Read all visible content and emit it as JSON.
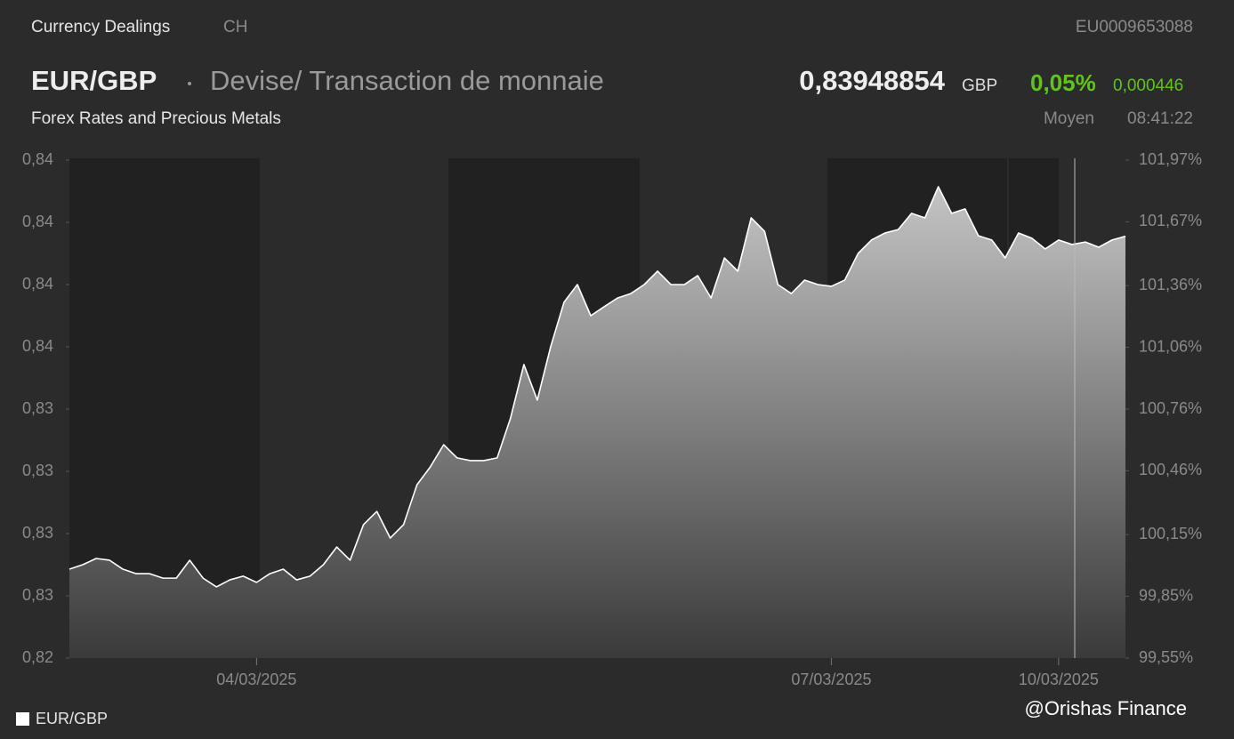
{
  "header": {
    "source": "Currency Dealings",
    "market": "CH",
    "isin": "EU0009653088",
    "symbol": "EUR/GBP",
    "description": "Devise/ Transaction de monnaie",
    "category": "Forex Rates and Precious Metals",
    "price": "0,83948854",
    "currency": "GBP",
    "change_pct": "0,05%",
    "change_abs": "0,000446",
    "price_type": "Moyen",
    "time": "08:41:22",
    "watermark": "@Orishas Finance"
  },
  "chart_data": {
    "type": "area",
    "categories": [
      null,
      null,
      null,
      null,
      null,
      null,
      null,
      null,
      null,
      null,
      null,
      null,
      null,
      null,
      "04/03/2025",
      null,
      null,
      null,
      null,
      null,
      null,
      null,
      null,
      null,
      null,
      null,
      null,
      null,
      null,
      null,
      null,
      null,
      null,
      null,
      null,
      null,
      null,
      null,
      null,
      null,
      null,
      null,
      null,
      null,
      null,
      null,
      null,
      null,
      null,
      null,
      null,
      null,
      null,
      null,
      null,
      null,
      null,
      "07/03/2025",
      null,
      null,
      null,
      null,
      null,
      null,
      null,
      null,
      null,
      null,
      null,
      null,
      null,
      null,
      null,
      null,
      "10/03/2025",
      null,
      null,
      null,
      null,
      null
    ],
    "series": [
      {
        "name": "EUR/GBP",
        "color": "#ffffff",
        "values": [
          0.82612,
          0.8263,
          0.82655,
          0.82648,
          0.82612,
          0.82594,
          0.82594,
          0.82576,
          0.82576,
          0.82648,
          0.82576,
          0.82541,
          0.82569,
          0.82584,
          0.82559,
          0.82594,
          0.82612,
          0.82569,
          0.82584,
          0.8263,
          0.82701,
          0.82648,
          0.82791,
          0.82844,
          0.82737,
          0.82791,
          0.82951,
          0.83023,
          0.83112,
          0.83059,
          0.83048,
          0.83048,
          0.83059,
          0.83219,
          0.83434,
          0.83291,
          0.83505,
          0.83684,
          0.83755,
          0.8363,
          0.83666,
          0.83701,
          0.83719,
          0.83755,
          0.83809,
          0.83755,
          0.83755,
          0.83791,
          0.83701,
          0.83862,
          0.83809,
          0.84023,
          0.83969,
          0.83755,
          0.83719,
          0.83773,
          0.83755,
          0.83748,
          0.83773,
          0.8388,
          0.83934,
          0.83962,
          0.83976,
          0.84041,
          0.84023,
          0.84148,
          0.84041,
          0.84059,
          0.83951,
          0.83934,
          0.83862,
          0.83962,
          0.83941,
          0.83898,
          0.83934,
          0.83916,
          0.83926,
          0.83905,
          0.83934,
          0.83949
        ]
      }
    ],
    "ylim": [
      0.82255,
      0.84255
    ],
    "yticks": [
      {
        "value": 0.82255,
        "label": "0,82"
      },
      {
        "value": 0.82505,
        "label": "0,83"
      },
      {
        "value": 0.82755,
        "label": "0,83"
      },
      {
        "value": 0.83005,
        "label": "0,83"
      },
      {
        "value": 0.83255,
        "label": "0,83"
      },
      {
        "value": 0.83505,
        "label": "0,84"
      },
      {
        "value": 0.83755,
        "label": "0,84"
      },
      {
        "value": 0.84005,
        "label": "0,84"
      },
      {
        "value": 0.84255,
        "label": "0,84"
      }
    ],
    "y2lim": [
      99.55,
      101.97
    ],
    "y2ticks": [
      {
        "value": 99.55,
        "label": "99,55%"
      },
      {
        "value": 99.85,
        "label": "99,85%"
      },
      {
        "value": 100.15,
        "label": "100,15%"
      },
      {
        "value": 100.46,
        "label": "100,46%"
      },
      {
        "value": 100.76,
        "label": "100,76%"
      },
      {
        "value": 101.06,
        "label": "101,06%"
      },
      {
        "value": 101.36,
        "label": "101,36%"
      },
      {
        "value": 101.67,
        "label": "101,67%"
      },
      {
        "value": 101.97,
        "label": "101,97%"
      }
    ],
    "legend": "bottom-left"
  }
}
